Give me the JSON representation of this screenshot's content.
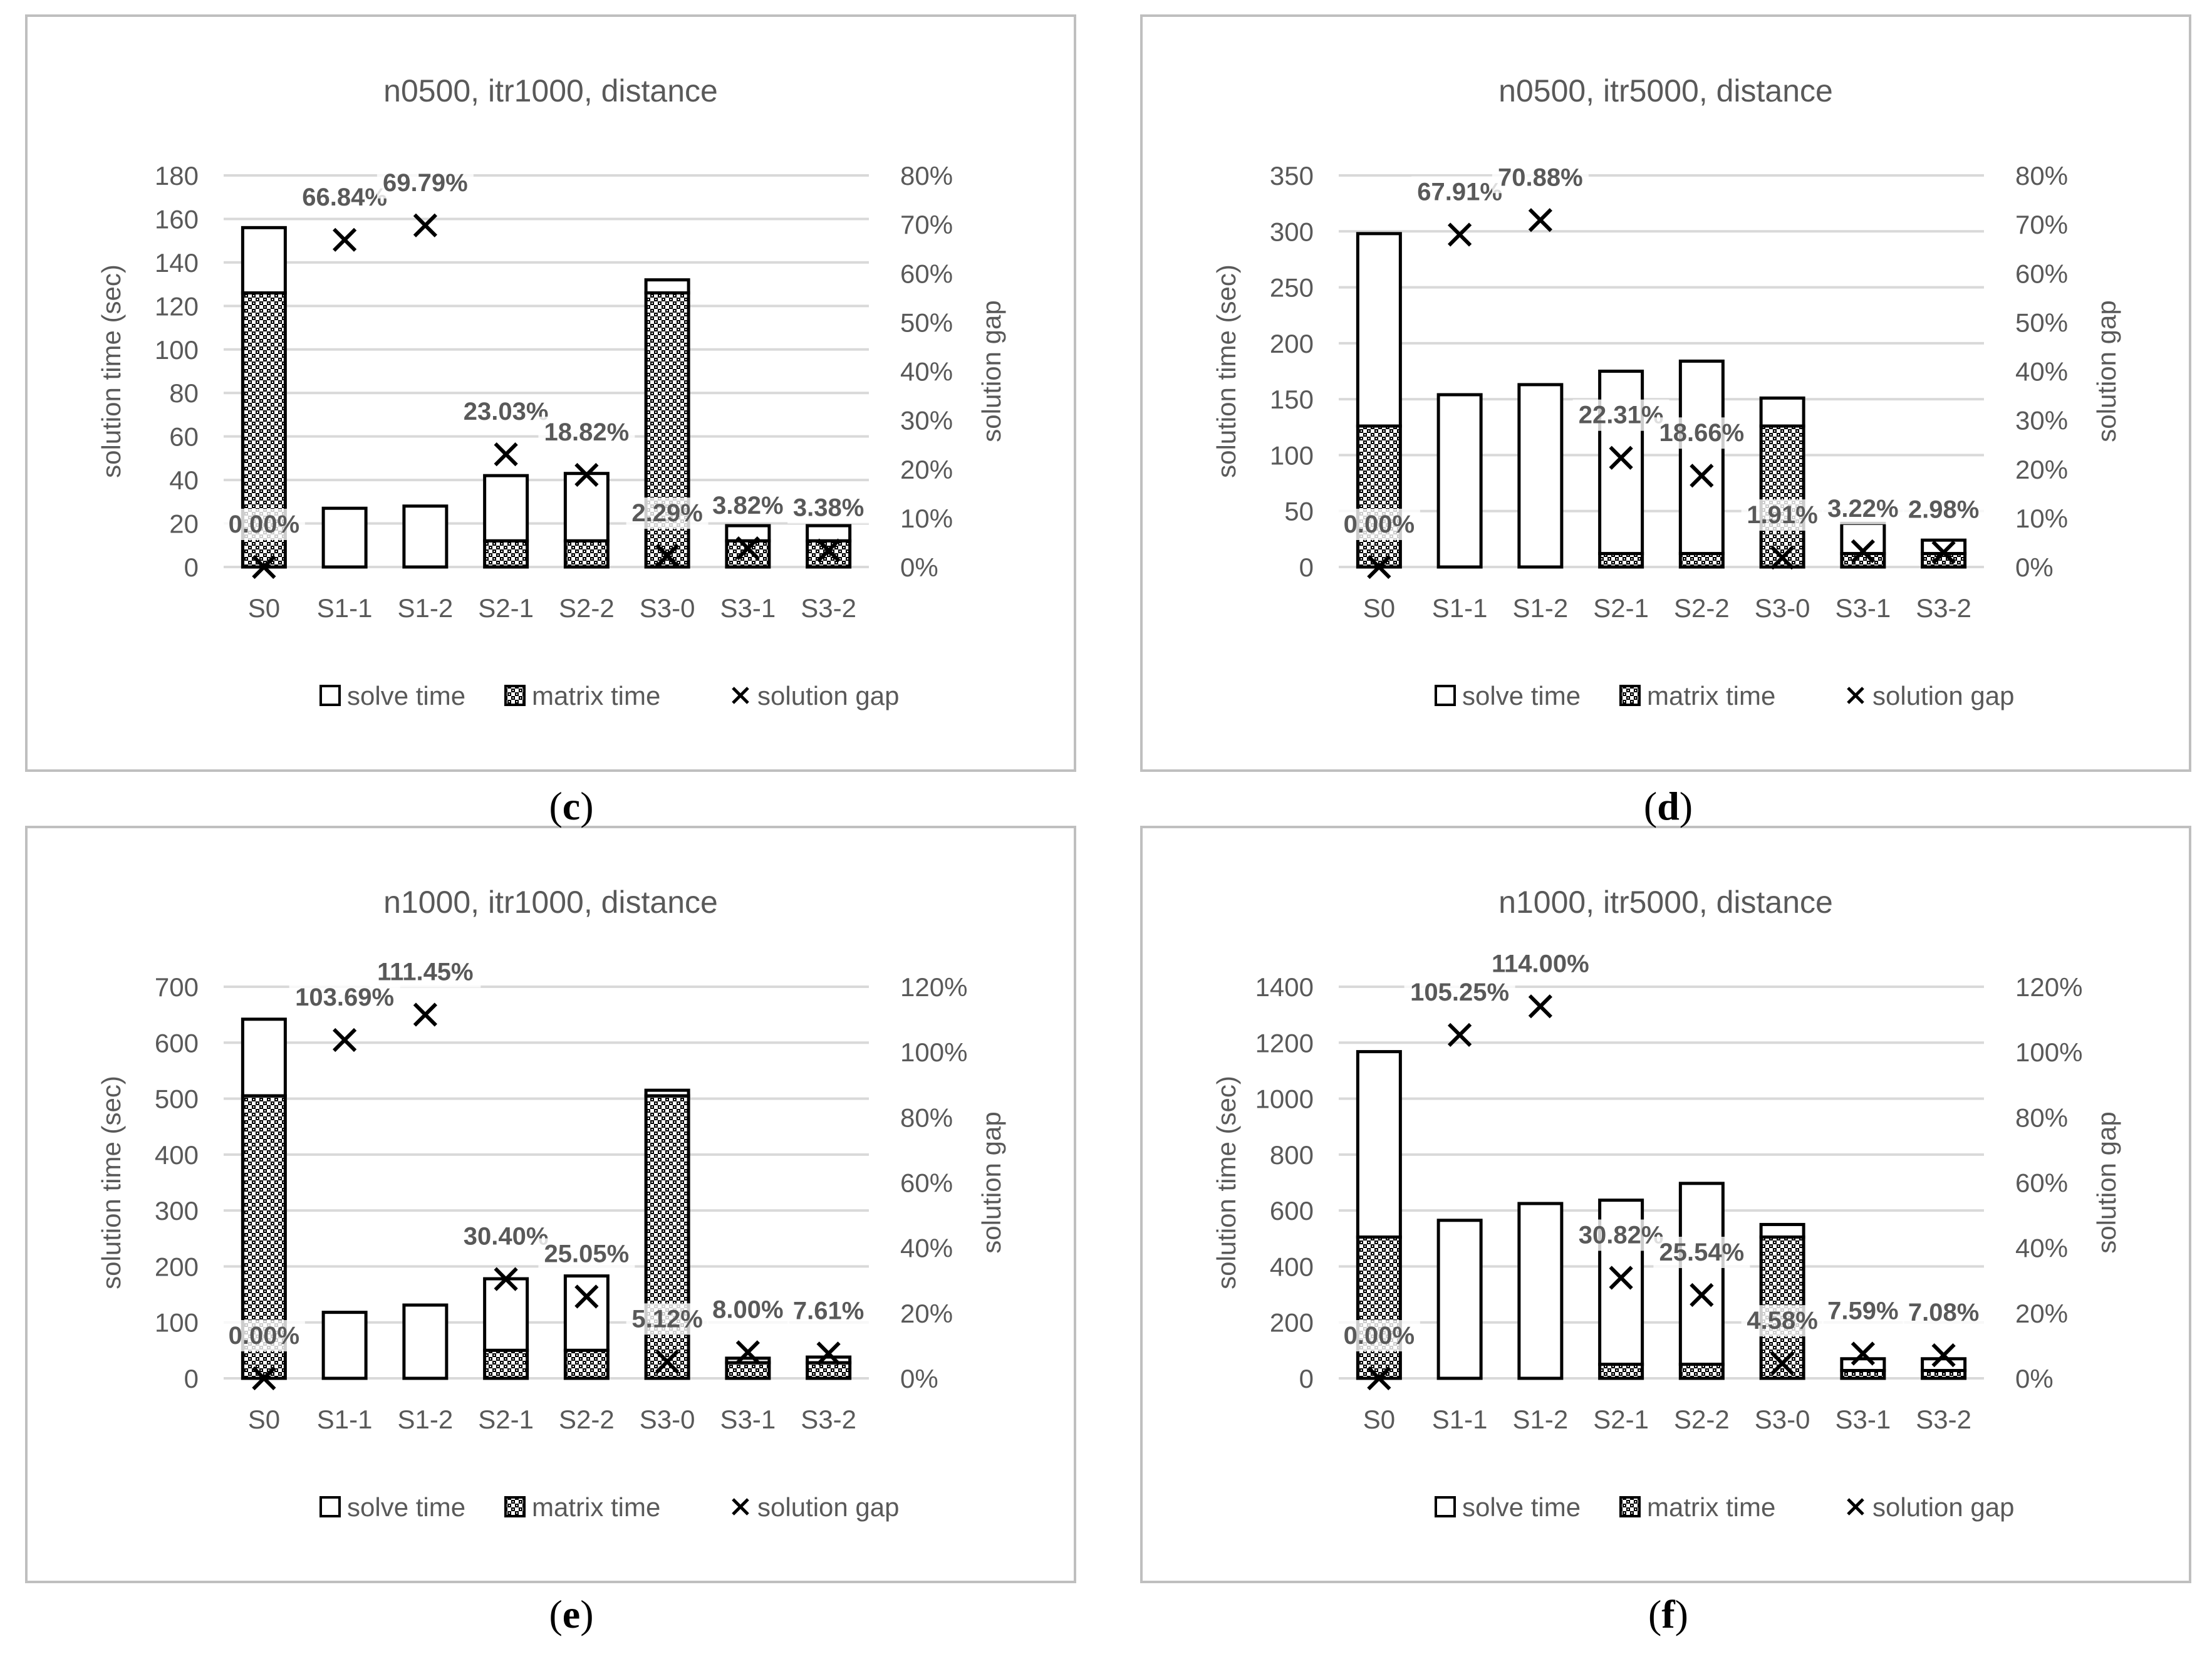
{
  "colors": {
    "panel_border": "#bfbfbf",
    "grid": "#d9d9d9",
    "axis_text": "#595959",
    "title_text": "#595959",
    "label_text": "#595959",
    "bar_stroke": "#000000",
    "hatch_dark": "#000000",
    "hatch_light": "#ffffff",
    "marker": "#000000"
  },
  "captions": [
    "c",
    "d",
    "e",
    "f"
  ],
  "chart_data": [
    {
      "type": "bar",
      "title": "n0500, itr1000, distance",
      "ylabel": "solution time (sec)",
      "y2label": "solution gap",
      "categories": [
        "S0",
        "S1-1",
        "S1-2",
        "S2-1",
        "S2-2",
        "S3-0",
        "S3-1",
        "S3-2"
      ],
      "ylim": [
        0,
        180
      ],
      "yticks": [
        0,
        20,
        40,
        60,
        80,
        100,
        120,
        140,
        160,
        180
      ],
      "y2lim": [
        0,
        80
      ],
      "y2ticks": [
        "0%",
        "10%",
        "20%",
        "30%",
        "40%",
        "50%",
        "60%",
        "70%",
        "80%"
      ],
      "series": [
        {
          "name": "matrix time",
          "values": [
            126,
            0,
            0,
            12,
            12,
            126,
            12,
            12
          ]
        },
        {
          "name": "solve time",
          "values": [
            30,
            27,
            28,
            30,
            31,
            6,
            7,
            7
          ]
        },
        {
          "name": "solution gap",
          "values": [
            0.0,
            66.84,
            69.79,
            23.03,
            18.82,
            2.29,
            3.82,
            3.38
          ]
        }
      ],
      "data_labels": [
        "0.00%",
        "66.84%",
        "69.79%",
        "23.03%",
        "18.82%",
        "2.29%",
        "3.82%",
        "3.38%"
      ],
      "legend": [
        "solve time",
        "matrix time",
        "solution gap"
      ],
      "legend_position": "bottom"
    },
    {
      "type": "bar",
      "title": "n0500, itr5000, distance",
      "ylabel": "solution time (sec)",
      "y2label": "solution gap",
      "categories": [
        "S0",
        "S1-1",
        "S1-2",
        "S2-1",
        "S2-2",
        "S3-0",
        "S3-1",
        "S3-2"
      ],
      "ylim": [
        0,
        350
      ],
      "yticks": [
        0,
        50,
        100,
        150,
        200,
        250,
        300,
        350
      ],
      "y2lim": [
        0,
        80
      ],
      "y2ticks": [
        "0%",
        "10%",
        "20%",
        "30%",
        "40%",
        "50%",
        "60%",
        "70%",
        "80%"
      ],
      "series": [
        {
          "name": "matrix time",
          "values": [
            126,
            0,
            0,
            12,
            12,
            126,
            12,
            12
          ]
        },
        {
          "name": "solve time",
          "values": [
            172,
            154,
            163,
            163,
            172,
            25,
            27,
            12
          ]
        },
        {
          "name": "solution gap",
          "values": [
            0.0,
            67.91,
            70.88,
            22.31,
            18.66,
            1.91,
            3.22,
            2.98
          ]
        }
      ],
      "data_labels": [
        "0.00%",
        "67.91%",
        "70.88%",
        "22.31%",
        "18.66%",
        "1.91%",
        "3.22%",
        "2.98%"
      ],
      "legend": [
        "solve time",
        "matrix time",
        "solution gap"
      ],
      "legend_position": "bottom"
    },
    {
      "type": "bar",
      "title": "n1000, itr1000, distance",
      "ylabel": "solution time (sec)",
      "y2label": "solution gap",
      "categories": [
        "S0",
        "S1-1",
        "S1-2",
        "S2-1",
        "S2-2",
        "S3-0",
        "S3-1",
        "S3-2"
      ],
      "ylim": [
        0,
        700
      ],
      "yticks": [
        0,
        100,
        200,
        300,
        400,
        500,
        600,
        700
      ],
      "y2lim": [
        0,
        120
      ],
      "y2ticks": [
        "0%",
        "20%",
        "40%",
        "60%",
        "80%",
        "100%",
        "120%"
      ],
      "series": [
        {
          "name": "matrix time",
          "values": [
            505,
            0,
            0,
            50,
            50,
            505,
            28,
            28
          ]
        },
        {
          "name": "solve time",
          "values": [
            137,
            118,
            131,
            128,
            133,
            10,
            8,
            10
          ]
        },
        {
          "name": "solution gap",
          "values": [
            0.0,
            103.69,
            111.45,
            30.4,
            25.05,
            5.12,
            8.0,
            7.61
          ]
        }
      ],
      "data_labels": [
        "0.00%",
        "103.69%",
        "111.45%",
        "30.40%",
        "25.05%",
        "5.12%",
        "8.00%",
        "7.61%"
      ],
      "legend": [
        "solve time",
        "matrix time",
        "solution gap"
      ],
      "legend_position": "bottom"
    },
    {
      "type": "bar",
      "title": "n1000, itr5000, distance",
      "ylabel": "solution time (sec)",
      "y2label": "solution gap",
      "categories": [
        "S0",
        "S1-1",
        "S1-2",
        "S2-1",
        "S2-2",
        "S3-0",
        "S3-1",
        "S3-2"
      ],
      "ylim": [
        0,
        1400
      ],
      "yticks": [
        0,
        200,
        400,
        600,
        800,
        1000,
        1200,
        1400
      ],
      "y2lim": [
        0,
        120
      ],
      "y2ticks": [
        "0%",
        "20%",
        "40%",
        "60%",
        "80%",
        "100%",
        "120%"
      ],
      "series": [
        {
          "name": "matrix time",
          "values": [
            505,
            0,
            0,
            50,
            50,
            505,
            28,
            28
          ]
        },
        {
          "name": "solve time",
          "values": [
            663,
            565,
            625,
            587,
            647,
            45,
            42,
            42
          ]
        },
        {
          "name": "solution gap",
          "values": [
            0.0,
            105.25,
            114.0,
            30.82,
            25.54,
            4.58,
            7.59,
            7.08
          ]
        }
      ],
      "data_labels": [
        "0.00%",
        "105.25%",
        "114.00%",
        "30.82%",
        "25.54%",
        "4.58%",
        "7.59%",
        "7.08%"
      ],
      "legend": [
        "solve time",
        "matrix time",
        "solution gap"
      ],
      "legend_position": "bottom"
    }
  ]
}
